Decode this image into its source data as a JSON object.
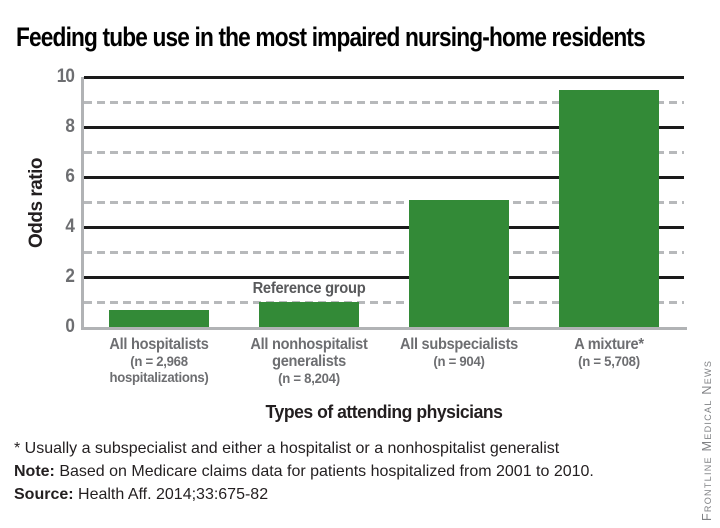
{
  "chart_data": {
    "type": "bar",
    "title": "Feeding tube use in the most impaired nursing-home residents",
    "xlabel": "Types of attending physicians",
    "ylabel": "Odds ratio",
    "ylim": [
      0,
      10
    ],
    "ytick_labels": [
      0,
      2,
      4,
      6,
      8,
      10
    ],
    "gridlines_solid": [
      2,
      4,
      6,
      8,
      10
    ],
    "gridlines_dashed": [
      1,
      3,
      5,
      7,
      9
    ],
    "categories": [
      "All hospitalists",
      "All nonhospitalist generalists",
      "All subspecialists",
      "A mixture*"
    ],
    "subcategories": [
      "(n = 2,968 hospitalizations)",
      "(n = 8,204)",
      "(n = 904)",
      "(n = 5,708)"
    ],
    "values": [
      0.7,
      1.0,
      5.1,
      9.5
    ],
    "annotation": {
      "text": "Reference group",
      "bar_index": 1
    },
    "bar_color": "#338A37",
    "legend": "none",
    "grid": "horizontal: solid black at even values, dashed gray at odd values"
  },
  "footer": {
    "asterisk": "* Usually a subspecialist and either a hospitalist or a nonhospitalist generalist",
    "note_label": "Note:",
    "note_body": " Based on Medicare claims data for patients hospitalized from 2001 to 2010.",
    "source_label": "Source:",
    "source_body": " Health Aff. 2014;33:675-82"
  },
  "credit": "Frontline Medical News"
}
